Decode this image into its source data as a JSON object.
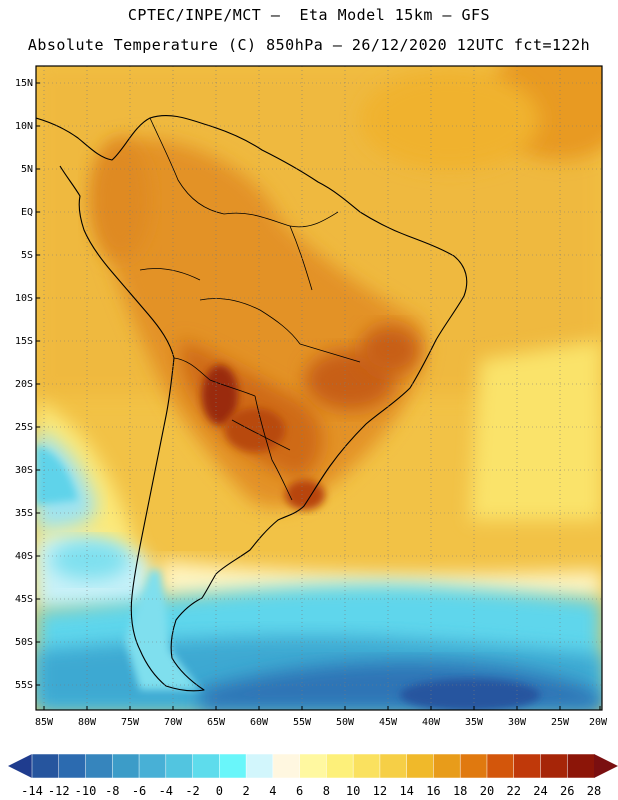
{
  "header": {
    "line1": "CPTEC/INPE/MCT –  Eta Model 15km – GFS",
    "line2": "Absolute Temperature (C) 850hPa – 26/12/2020 12UTC fct=122h"
  },
  "map": {
    "lat_labels": [
      "15N",
      "10N",
      "5N",
      "EQ",
      "5S",
      "10S",
      "15S",
      "20S",
      "25S",
      "30S",
      "35S",
      "40S",
      "45S",
      "50S",
      "55S"
    ],
    "lon_labels": [
      "85W",
      "80W",
      "75W",
      "70W",
      "65W",
      "60W",
      "55W",
      "50W",
      "45W",
      "40W",
      "35W",
      "30W",
      "25W",
      "20W"
    ]
  },
  "colorbar": {
    "colors": [
      "#1f3c8e",
      "#26559e",
      "#2c6bb0",
      "#3685bd",
      "#3c9cc8",
      "#48b0d6",
      "#52c5e0",
      "#5edcec",
      "#69f6fa",
      "#d2f6fc",
      "#fff7e0",
      "#fff8a0",
      "#fdf07a",
      "#fae15f",
      "#f6cf46",
      "#f0b92a",
      "#e89c1a",
      "#e0790f",
      "#d3560b",
      "#c0390a",
      "#a62508",
      "#8c1508",
      "#7a0f10"
    ],
    "labels": [
      "-14",
      "-12",
      "-10",
      "-8",
      "-6",
      "-4",
      "-2",
      "0",
      "2",
      "4",
      "6",
      "8",
      "10",
      "12",
      "14",
      "16",
      "18",
      "20",
      "22",
      "24",
      "26",
      "28"
    ]
  }
}
